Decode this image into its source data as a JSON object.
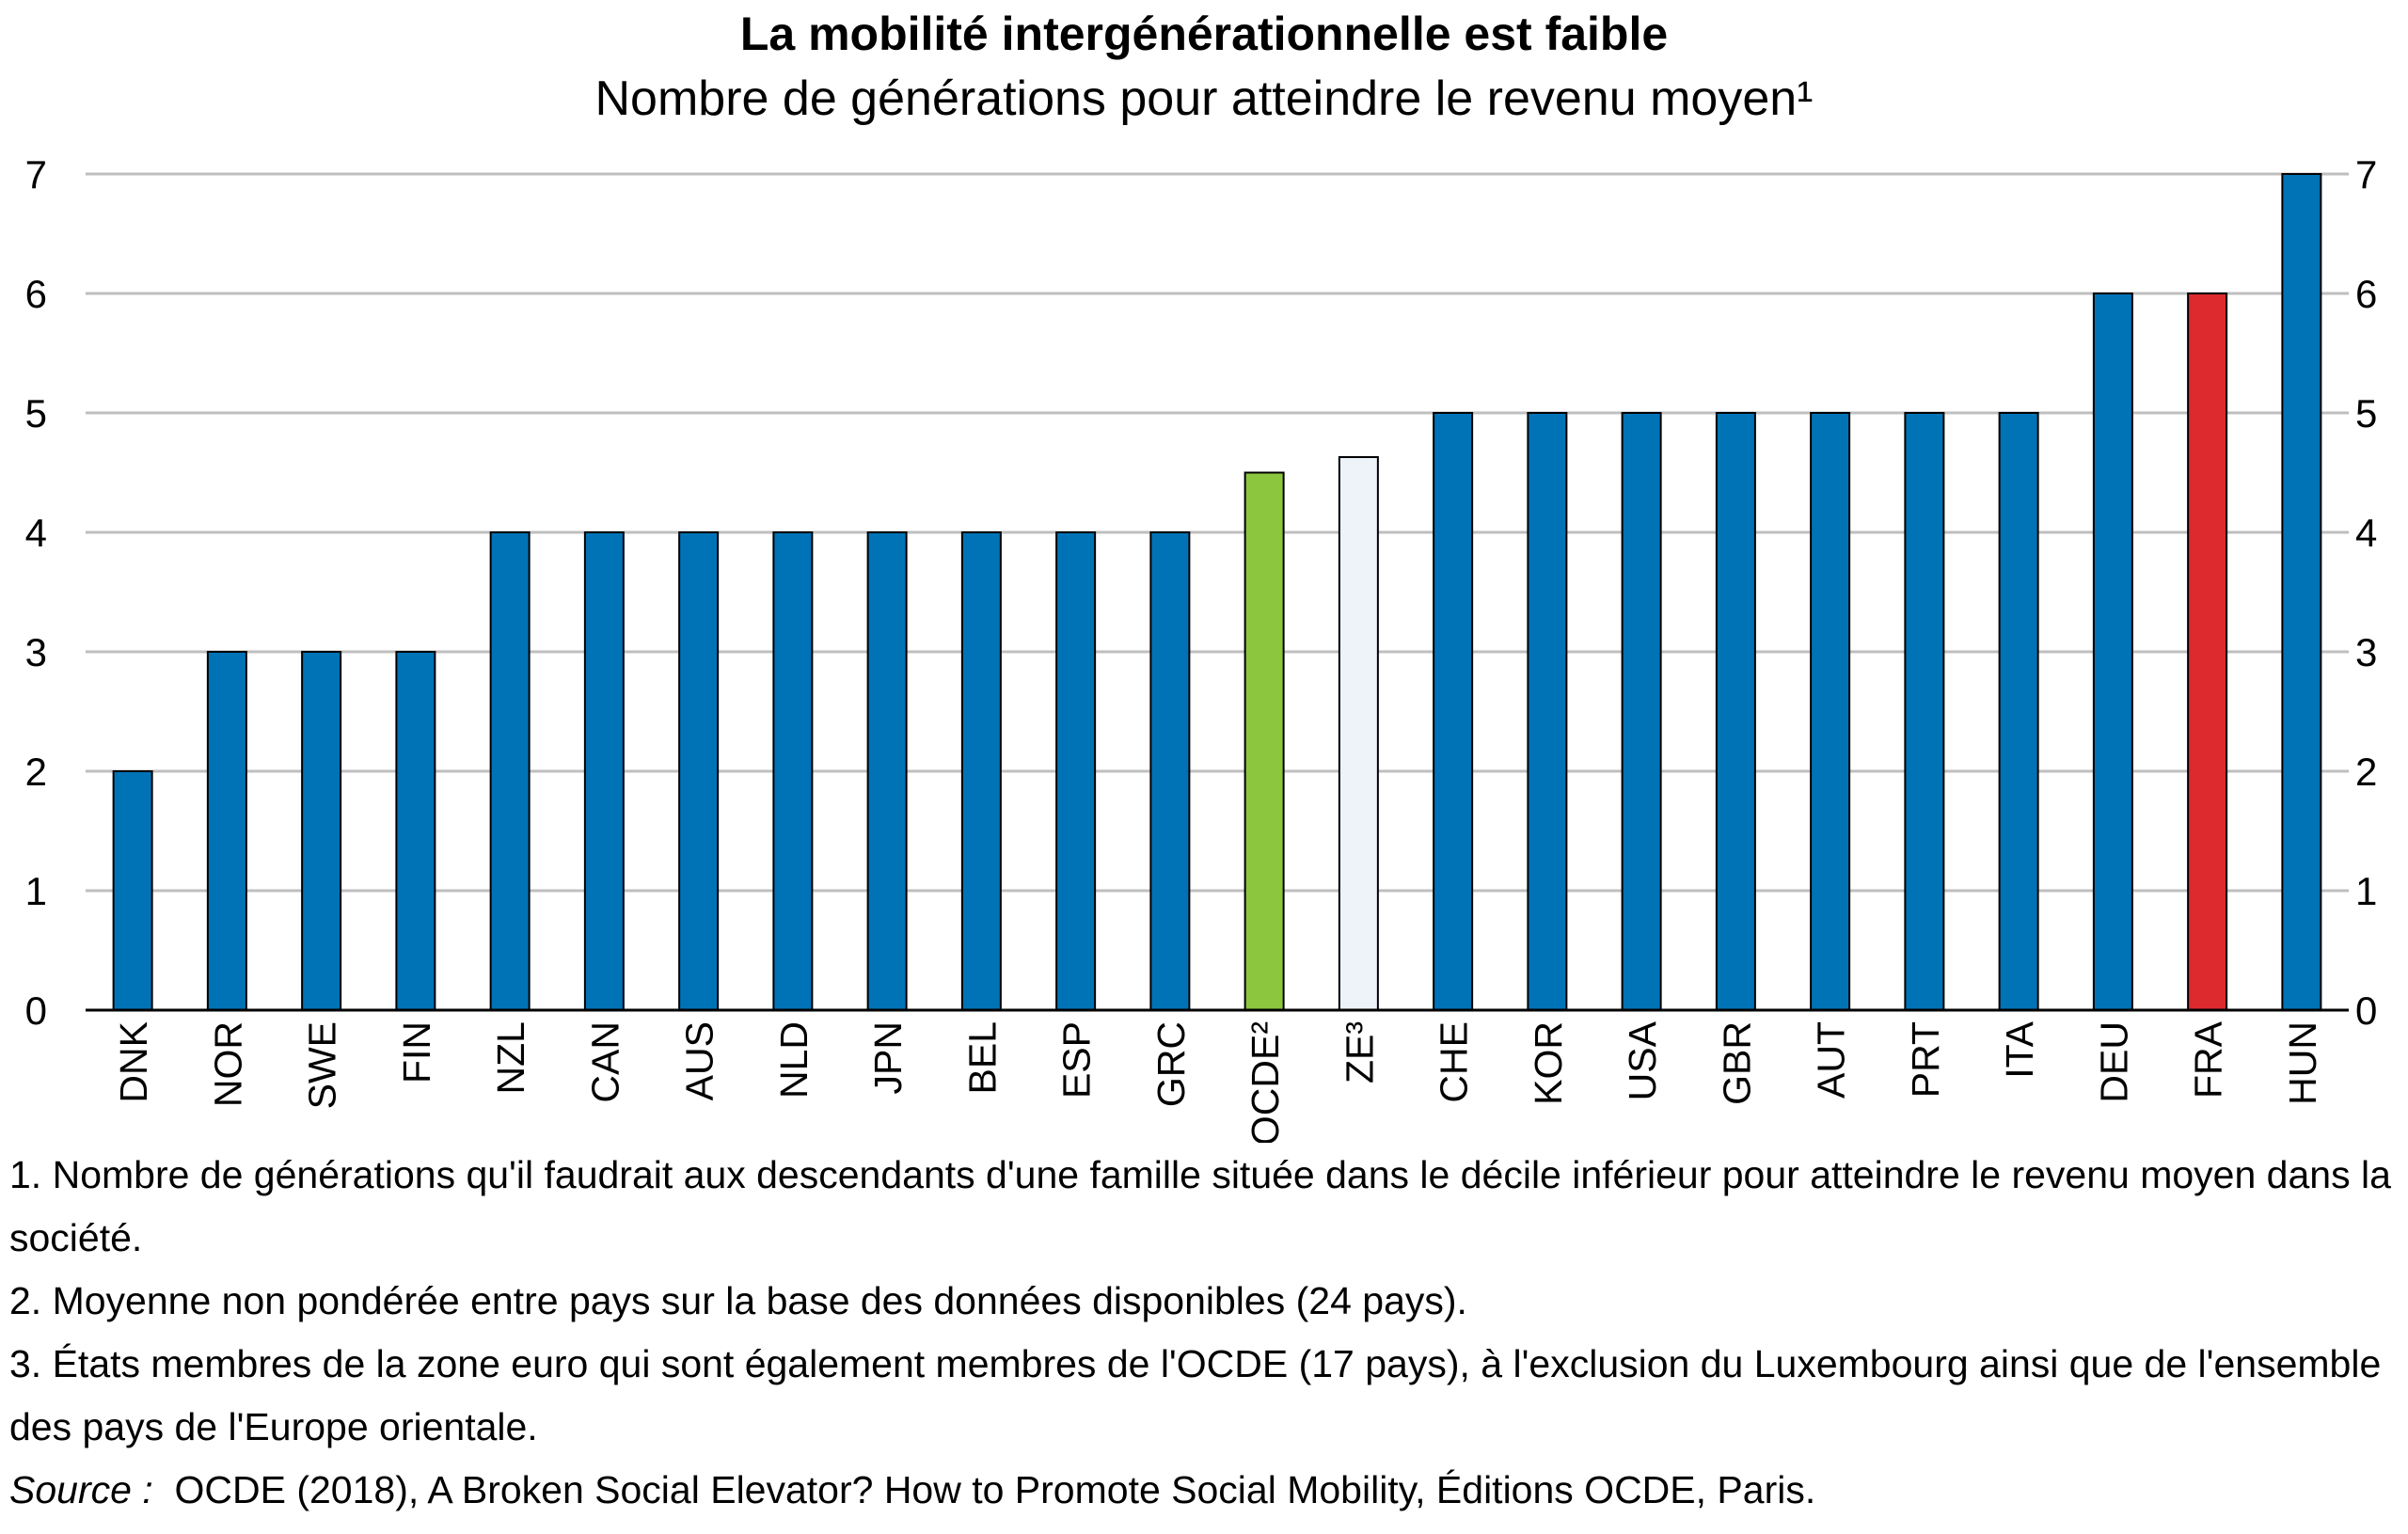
{
  "chart_data": {
    "type": "bar",
    "title": "La mobilité intergénérationnelle est faible",
    "subtitle": "Nombre de générations pour atteindre le revenu moyen¹",
    "categories": [
      "DNK",
      "NOR",
      "SWE",
      "FIN",
      "NZL",
      "CAN",
      "AUS",
      "NLD",
      "JPN",
      "BEL",
      "ESP",
      "GRC",
      "OCDE²",
      "ZE³",
      "CHE",
      "KOR",
      "USA",
      "GBR",
      "AUT",
      "PRT",
      "ITA",
      "DEU",
      "FRA",
      "HUN"
    ],
    "values": [
      2,
      3,
      3,
      3,
      4,
      4,
      4,
      4,
      4,
      4,
      4,
      4,
      4.5,
      4.63,
      5,
      5,
      5,
      5,
      5,
      5,
      5,
      6,
      6,
      7
    ],
    "colors": [
      "#0073b7",
      "#0073b7",
      "#0073b7",
      "#0073b7",
      "#0073b7",
      "#0073b7",
      "#0073b7",
      "#0073b7",
      "#0073b7",
      "#0073b7",
      "#0073b7",
      "#0073b7",
      "#8cc63f",
      "#eef2f9",
      "#0073b7",
      "#0073b7",
      "#0073b7",
      "#0073b7",
      "#0073b7",
      "#0073b7",
      "#0073b7",
      "#0073b7",
      "#dc2a2f",
      "#0073b7"
    ],
    "ylim": [
      0,
      7
    ],
    "yticks": [
      0,
      1,
      2,
      3,
      4,
      5,
      6,
      7
    ],
    "ylabel": "",
    "xlabel": "",
    "grid": true,
    "secondary_y_axis": true
  },
  "notes": [
    "1. Nombre de générations qu'il faudrait aux descendants d'une famille située dans le décile inférieur pour atteindre le revenu moyen dans la société.",
    "2. Moyenne non pondérée entre pays sur la base des données disponibles (24 pays).",
    "3. États membres de la zone euro qui sont également membres de l'OCDE (17 pays), à l'exclusion du Luxembourg ainsi que de l'ensemble des pays de l'Europe orientale."
  ],
  "source": {
    "label": "Source :",
    "text": "OCDE (2018), A Broken Social Elevator? How to Promote Social Mobility, Éditions OCDE, Paris."
  }
}
